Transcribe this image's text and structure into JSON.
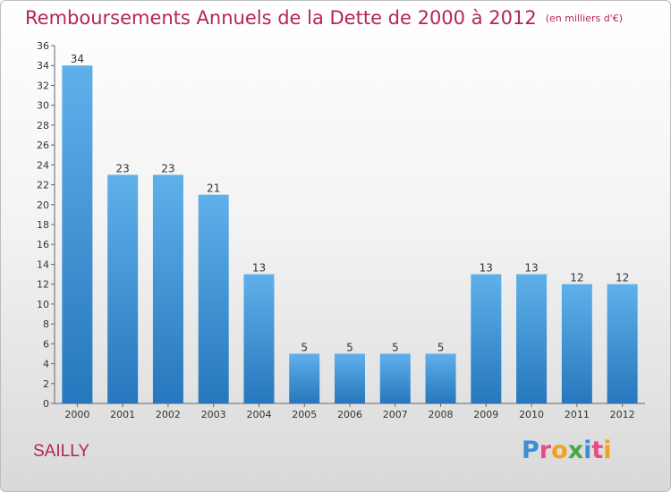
{
  "title": "Remboursements Annuels de la Dette de 2000 à 2012",
  "unit": "(en milliers d'€)",
  "commune": "SAILLY",
  "logo": {
    "letters": [
      "P",
      "r",
      "o",
      "x",
      "i",
      "t",
      "i"
    ],
    "colors": [
      "#3a8fd6",
      "#e84d8a",
      "#f5a01a",
      "#4aa84a",
      "#3a8fd6",
      "#e84d8a",
      "#f5a01a"
    ]
  },
  "colors": {
    "bar_light": "#5fb0ea",
    "bar_dark": "#2677bd",
    "title": "#b5245e"
  },
  "chart_data": {
    "type": "bar",
    "title": "Remboursements Annuels de la Dette de 2000 à 2012",
    "xlabel": "",
    "ylabel": "",
    "categories": [
      "2000",
      "2001",
      "2002",
      "2003",
      "2004",
      "2005",
      "2006",
      "2007",
      "2008",
      "2009",
      "2010",
      "2011",
      "2012"
    ],
    "values": [
      34,
      23,
      23,
      21,
      13,
      5,
      5,
      5,
      5,
      13,
      13,
      12,
      12
    ],
    "ylim": [
      0,
      36
    ],
    "yticks": [
      0,
      2,
      4,
      6,
      8,
      10,
      12,
      14,
      16,
      18,
      20,
      22,
      24,
      26,
      28,
      30,
      32,
      34,
      36
    ],
    "grid": false,
    "legend": "none"
  }
}
